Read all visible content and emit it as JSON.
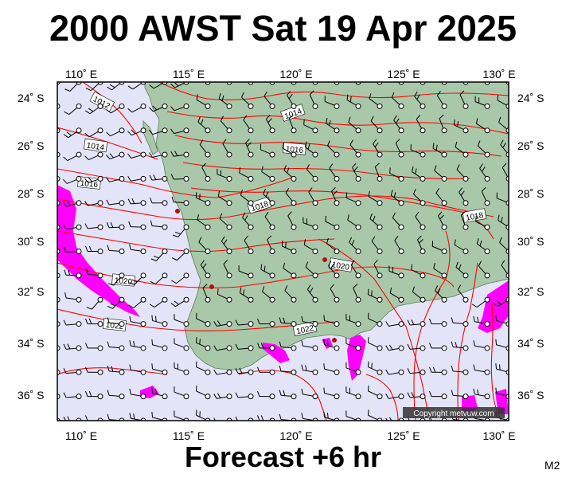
{
  "title": "2000 AWST Sat 19 Apr 2025",
  "footer": "Forecast +6 hr",
  "model_code": "M2",
  "copyright": "Copyright metvuw.com",
  "axes": {
    "lon_labels": [
      "110˚ E",
      "115˚ E",
      "120˚ E",
      "125˚ E",
      "130˚ E"
    ],
    "lat_labels": [
      "24˚ S",
      "26˚ S",
      "28˚ S",
      "30˚ S",
      "32˚ S",
      "34˚ S",
      "36˚ S"
    ],
    "lon_range": [
      109,
      130
    ],
    "lat_range": [
      -23.2,
      -37
    ]
  },
  "isobar_labels": [
    "1012",
    "1014",
    "1014",
    "1016",
    "1016",
    "1018",
    "1018",
    "1020",
    "1020",
    "1022",
    "1022"
  ],
  "colors": {
    "sea": "#e4e4f8",
    "land": "#a9c8a9",
    "isobar": "#ff0000",
    "rain": "#ff00ff",
    "frame": "#000000"
  }
}
